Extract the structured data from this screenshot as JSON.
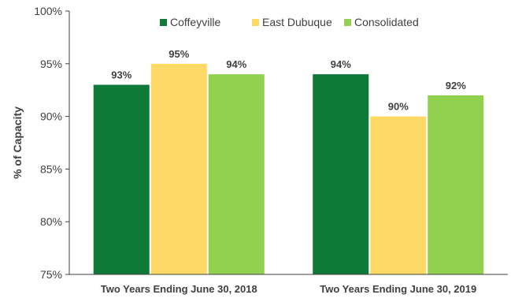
{
  "chart_data": {
    "type": "bar",
    "title": "",
    "xlabel": "",
    "ylabel": "% of Capacity",
    "ylim": [
      75,
      100
    ],
    "yticks": [
      75,
      80,
      85,
      90,
      95,
      100
    ],
    "ytick_labels": [
      "75%",
      "80%",
      "85%",
      "90%",
      "95%",
      "100%"
    ],
    "categories": [
      "Two Years Ending June 30, 2018",
      "Two Years Ending June 30, 2019"
    ],
    "series": [
      {
        "name": "Coffeyville",
        "color": "#0f7a38",
        "values": [
          93,
          94
        ],
        "labels": [
          "93%",
          "94%"
        ]
      },
      {
        "name": "East Dubuque",
        "color": "#fdd966",
        "values": [
          95,
          90
        ],
        "labels": [
          "95%",
          "90%"
        ]
      },
      {
        "name": "Consolidated",
        "color": "#92d050",
        "values": [
          94,
          92
        ],
        "labels": [
          "94%",
          "92%"
        ]
      }
    ],
    "legend_position": "top",
    "grid": false
  }
}
